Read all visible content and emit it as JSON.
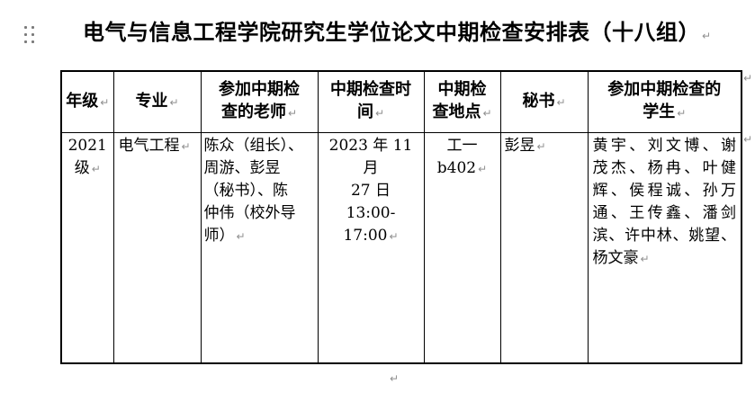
{
  "title": {
    "lines": [
      "电气与信息工程学院研究生学位论文中期检查安排表（十八组）↵"
    ]
  },
  "table": {
    "headers": [
      {
        "id": "grade",
        "lines": [
          "年级↵"
        ]
      },
      {
        "id": "major",
        "lines": [
          "专业↵"
        ]
      },
      {
        "id": "teachers",
        "lines": [
          "参加中期检",
          "查的老师↵"
        ]
      },
      {
        "id": "time",
        "lines": [
          "中期检查时",
          "间↵"
        ]
      },
      {
        "id": "location",
        "lines": [
          "中期检",
          "查地点↵"
        ]
      },
      {
        "id": "secretary",
        "lines": [
          "秘书↵"
        ]
      },
      {
        "id": "students",
        "lines": [
          "参加中期检查的",
          "学生↵"
        ]
      }
    ],
    "row": {
      "grade": {
        "lines": [
          "2021",
          "级↵"
        ]
      },
      "major": {
        "lines": [
          "电气工程↵"
        ]
      },
      "teachers": {
        "lines": [
          "陈众（组长）、",
          "周游、彭昱",
          "（秘书）、陈",
          "仲伟（校外导",
          "师）↵"
        ]
      },
      "time": {
        "lines": [
          "2023 年 11 月",
          "27 日",
          "13:00-17:00↵"
        ]
      },
      "location": {
        "lines": [
          "工一",
          "b402↵"
        ]
      },
      "secretary": {
        "lines": [
          "彭昱↵"
        ]
      },
      "students": {
        "lines": [
          "黄宇、刘文博、谢",
          "茂杰、杨冉、叶健",
          "辉、侯程诚、孙万",
          "通、王传鑫、潘剑",
          "滨、许中林、姚望、",
          "杨文豪↵"
        ]
      }
    }
  },
  "marks": {
    "return": "↵"
  },
  "colors": {
    "text": "#000000",
    "border": "#000000",
    "paragraph_mark": "#8f8f8f",
    "drag_handle": "#7b7b7b",
    "background": "#ffffff"
  }
}
